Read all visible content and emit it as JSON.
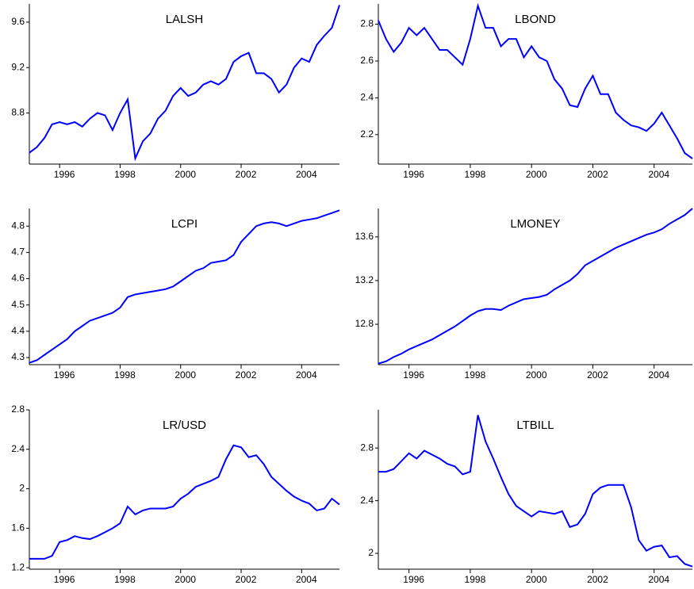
{
  "chart_data": [
    {
      "type": "line",
      "title": "LALSH",
      "color": "#0000ff",
      "x": [
        1995,
        1995.25,
        1995.5,
        1995.75,
        1996,
        1996.25,
        1996.5,
        1996.75,
        1997,
        1997.25,
        1997.5,
        1997.75,
        1998,
        1998.25,
        1998.5,
        1998.75,
        1999,
        1999.25,
        1999.5,
        1999.75,
        2000,
        2000.25,
        2000.5,
        2000.75,
        2001,
        2001.25,
        2001.5,
        2001.75,
        2002,
        2002.25,
        2002.5,
        2002.75,
        2003,
        2003.25,
        2003.5,
        2003.75,
        2004,
        2004.25,
        2004.5,
        2004.75,
        2005,
        2005.25
      ],
      "values": [
        8.45,
        8.5,
        8.58,
        8.7,
        8.72,
        8.7,
        8.72,
        8.68,
        8.75,
        8.8,
        8.78,
        8.65,
        8.8,
        8.92,
        8.4,
        8.55,
        8.62,
        8.75,
        8.82,
        8.95,
        9.02,
        8.95,
        8.98,
        9.05,
        9.08,
        9.05,
        9.1,
        9.25,
        9.3,
        9.33,
        9.15,
        9.15,
        9.1,
        8.98,
        9.05,
        9.2,
        9.28,
        9.25,
        9.4,
        9.48,
        9.55,
        9.75
      ],
      "xlim": [
        1995,
        2005.25
      ],
      "xticks": [
        1996,
        1998,
        2000,
        2002,
        2004
      ],
      "ylim": [
        8.35,
        9.76
      ],
      "yticks": [
        8.8,
        9.2,
        9.6
      ]
    },
    {
      "type": "line",
      "title": "LBOND",
      "color": "#0000ff",
      "x": [
        1995,
        1995.25,
        1995.5,
        1995.75,
        1996,
        1996.25,
        1996.5,
        1996.75,
        1997,
        1997.25,
        1997.5,
        1997.75,
        1998,
        1998.25,
        1998.5,
        1998.75,
        1999,
        1999.25,
        1999.5,
        1999.75,
        2000,
        2000.25,
        2000.5,
        2000.75,
        2001,
        2001.25,
        2001.5,
        2001.75,
        2002,
        2002.25,
        2002.5,
        2002.75,
        2003,
        2003.25,
        2003.5,
        2003.75,
        2004,
        2004.25,
        2004.5,
        2004.75,
        2005,
        2005.25
      ],
      "values": [
        2.82,
        2.72,
        2.65,
        2.7,
        2.78,
        2.74,
        2.78,
        2.72,
        2.66,
        2.66,
        2.62,
        2.58,
        2.72,
        2.9,
        2.78,
        2.78,
        2.68,
        2.72,
        2.72,
        2.62,
        2.68,
        2.62,
        2.6,
        2.5,
        2.45,
        2.36,
        2.35,
        2.45,
        2.52,
        2.42,
        2.42,
        2.32,
        2.28,
        2.25,
        2.24,
        2.22,
        2.26,
        2.32,
        2.25,
        2.18,
        2.1,
        2.07
      ],
      "xlim": [
        1995,
        2005.25
      ],
      "xticks": [
        1996,
        1998,
        2000,
        2002,
        2004
      ],
      "ylim": [
        2.04,
        2.91
      ],
      "yticks": [
        2.2,
        2.4,
        2.6,
        2.8
      ]
    },
    {
      "type": "line",
      "title": "LCPI",
      "color": "#0000ff",
      "x": [
        1995,
        1995.25,
        1995.5,
        1995.75,
        1996,
        1996.25,
        1996.5,
        1996.75,
        1997,
        1997.25,
        1997.5,
        1997.75,
        1998,
        1998.25,
        1998.5,
        1998.75,
        1999,
        1999.25,
        1999.5,
        1999.75,
        2000,
        2000.25,
        2000.5,
        2000.75,
        2001,
        2001.25,
        2001.5,
        2001.75,
        2002,
        2002.25,
        2002.5,
        2002.75,
        2003,
        2003.25,
        2003.5,
        2003.75,
        2004,
        2004.25,
        2004.5,
        2004.75,
        2005,
        2005.25
      ],
      "values": [
        4.28,
        4.29,
        4.31,
        4.33,
        4.35,
        4.37,
        4.4,
        4.42,
        4.44,
        4.45,
        4.46,
        4.47,
        4.49,
        4.53,
        4.54,
        4.545,
        4.55,
        4.555,
        4.56,
        4.57,
        4.59,
        4.61,
        4.63,
        4.64,
        4.66,
        4.665,
        4.67,
        4.69,
        4.74,
        4.77,
        4.8,
        4.81,
        4.815,
        4.81,
        4.8,
        4.81,
        4.82,
        4.825,
        4.83,
        4.84,
        4.85,
        4.86
      ],
      "xlim": [
        1995,
        2005.25
      ],
      "xticks": [
        1996,
        1998,
        2000,
        2002,
        2004
      ],
      "ylim": [
        4.273,
        4.867
      ],
      "yticks": [
        4.3,
        4.4,
        4.5,
        4.6,
        4.7,
        4.8
      ]
    },
    {
      "type": "line",
      "title": "LMONEY",
      "color": "#0000ff",
      "x": [
        1995,
        1995.25,
        1995.5,
        1995.75,
        1996,
        1996.25,
        1996.5,
        1996.75,
        1997,
        1997.25,
        1997.5,
        1997.75,
        1998,
        1998.25,
        1998.5,
        1998.75,
        1999,
        1999.25,
        1999.5,
        1999.75,
        2000,
        2000.25,
        2000.5,
        2000.75,
        2001,
        2001.25,
        2001.5,
        2001.75,
        2002,
        2002.25,
        2002.5,
        2002.75,
        2003,
        2003.25,
        2003.5,
        2003.75,
        2004,
        2004.25,
        2004.5,
        2004.75,
        2005,
        2005.25
      ],
      "values": [
        12.44,
        12.46,
        12.5,
        12.53,
        12.57,
        12.6,
        12.63,
        12.66,
        12.7,
        12.74,
        12.78,
        12.83,
        12.88,
        12.92,
        12.94,
        12.94,
        12.93,
        12.97,
        13.0,
        13.03,
        13.04,
        13.05,
        13.07,
        13.12,
        13.16,
        13.2,
        13.26,
        13.34,
        13.38,
        13.42,
        13.46,
        13.5,
        13.53,
        13.56,
        13.59,
        13.62,
        13.64,
        13.67,
        13.72,
        13.76,
        13.8,
        13.86
      ],
      "xlim": [
        1995,
        2005.25
      ],
      "xticks": [
        1996,
        1998,
        2000,
        2002,
        2004
      ],
      "ylim": [
        12.43,
        13.86
      ],
      "yticks": [
        12.8,
        13.2,
        13.6
      ]
    },
    {
      "type": "line",
      "title": "LR/USD",
      "color": "#0000ff",
      "x": [
        1995,
        1995.25,
        1995.5,
        1995.75,
        1996,
        1996.25,
        1996.5,
        1996.75,
        1997,
        1997.25,
        1997.5,
        1997.75,
        1998,
        1998.25,
        1998.5,
        1998.75,
        1999,
        1999.25,
        1999.5,
        1999.75,
        2000,
        2000.25,
        2000.5,
        2000.75,
        2001,
        2001.25,
        2001.5,
        2001.75,
        2002,
        2002.25,
        2002.5,
        2002.75,
        2003,
        2003.25,
        2003.5,
        2003.75,
        2004,
        2004.25,
        2004.5,
        2004.75,
        2005,
        2005.25
      ],
      "values": [
        1.29,
        1.29,
        1.29,
        1.32,
        1.46,
        1.48,
        1.52,
        1.5,
        1.49,
        1.52,
        1.56,
        1.6,
        1.65,
        1.82,
        1.74,
        1.78,
        1.8,
        1.8,
        1.8,
        1.82,
        1.9,
        1.95,
        2.02,
        2.05,
        2.08,
        2.12,
        2.3,
        2.44,
        2.42,
        2.32,
        2.34,
        2.25,
        2.12,
        2.05,
        1.98,
        1.92,
        1.88,
        1.85,
        1.78,
        1.8,
        1.9,
        1.84
      ],
      "xlim": [
        1995,
        2005.25
      ],
      "xticks": [
        1996,
        1998,
        2000,
        2002,
        2004
      ],
      "ylim": [
        1.185,
        2.8
      ],
      "yticks": [
        1.2,
        1.6,
        2.0,
        2.4,
        2.8
      ]
    },
    {
      "type": "line",
      "title": "LTBILL",
      "color": "#0000ff",
      "x": [
        1995,
        1995.25,
        1995.5,
        1995.75,
        1996,
        1996.25,
        1996.5,
        1996.75,
        1997,
        1997.25,
        1997.5,
        1997.75,
        1998,
        1998.25,
        1998.5,
        1998.75,
        1999,
        1999.25,
        1999.5,
        1999.75,
        2000,
        2000.25,
        2000.5,
        2000.75,
        2001,
        2001.25,
        2001.5,
        2001.75,
        2002,
        2002.25,
        2002.5,
        2002.75,
        2003,
        2003.25,
        2003.5,
        2003.75,
        2004,
        2004.25,
        2004.5,
        2004.75,
        2005,
        2005.25
      ],
      "values": [
        2.62,
        2.62,
        2.64,
        2.7,
        2.76,
        2.72,
        2.78,
        2.75,
        2.72,
        2.68,
        2.66,
        2.6,
        2.62,
        3.05,
        2.85,
        2.72,
        2.58,
        2.45,
        2.36,
        2.32,
        2.28,
        2.32,
        2.31,
        2.3,
        2.32,
        2.2,
        2.22,
        2.3,
        2.45,
        2.5,
        2.52,
        2.52,
        2.52,
        2.35,
        2.1,
        2.02,
        2.05,
        2.06,
        1.97,
        1.98,
        1.92,
        1.9
      ],
      "xlim": [
        1995,
        2005.25
      ],
      "xticks": [
        1996,
        1998,
        2000,
        2002,
        2004
      ],
      "ylim": [
        1.88,
        3.09
      ],
      "yticks": [
        2.0,
        2.4,
        2.8
      ]
    }
  ]
}
